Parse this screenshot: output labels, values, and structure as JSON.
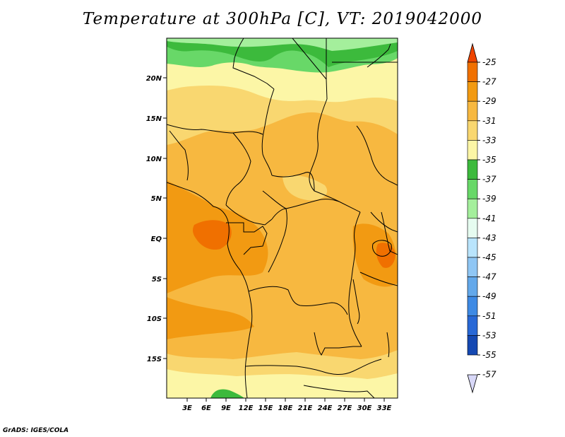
{
  "title": "Temperature at 300hPa [C], VT: 2019042000",
  "credit": "GrADS: IGES/COLA",
  "map": {
    "lat_labels": [
      "20N",
      "15N",
      "10N",
      "5N",
      "EQ",
      "5S",
      "10S",
      "15S"
    ],
    "lon_labels": [
      "3E",
      "6E",
      "9E",
      "12E",
      "15E",
      "18E",
      "21E",
      "24E",
      "27E",
      "30E",
      "33E"
    ]
  },
  "colorbar": {
    "labels": [
      "-25",
      "-27",
      "-29",
      "-31",
      "-33",
      "-35",
      "-37",
      "-39",
      "-41",
      "-43",
      "-45",
      "-47",
      "-49",
      "-51",
      "-53",
      "-55",
      "-57"
    ],
    "colors": [
      "#ee4400",
      "#f07000",
      "#f29a12",
      "#f7b840",
      "#f9d770",
      "#fcf6a6",
      "#3cba3c",
      "#68d868",
      "#a4ef9c",
      "#e6fcf0",
      "#b9e4fc",
      "#8fc6f4",
      "#63a8ea",
      "#3e8ae4",
      "#2868d6",
      "#1448b2",
      "#0a1e78"
    ]
  }
}
